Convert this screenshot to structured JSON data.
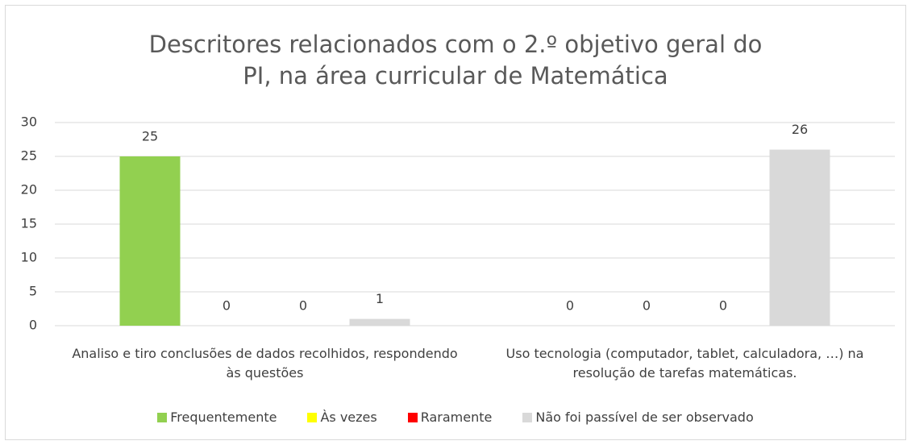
{
  "chart_data": {
    "type": "bar",
    "title": "Descritores relacionados com o 2.º objetivo geral do PI, na área curricular de Matemática",
    "categories": [
      "Analiso e tiro conclusões de dados recolhidos, respondendo às questões",
      "Uso tecnologia (computador, tablet, calculadora, …) na resolução de tarefas matemáticas."
    ],
    "series": [
      {
        "name": "Frequentemente",
        "color": "#92d050",
        "values": [
          25,
          0
        ]
      },
      {
        "name": "Às vezes",
        "color": "#ffff00",
        "values": [
          0,
          0
        ]
      },
      {
        "name": "Raramente",
        "color": "#ff0000",
        "values": [
          0,
          0
        ]
      },
      {
        "name": "Não foi passível de ser observado",
        "color": "#d9d9d9",
        "values": [
          1,
          26
        ]
      }
    ],
    "ylim": [
      0,
      30
    ],
    "yticks": [
      0,
      5,
      10,
      15,
      20,
      25,
      30
    ],
    "grid": true,
    "legend": "bottom"
  }
}
